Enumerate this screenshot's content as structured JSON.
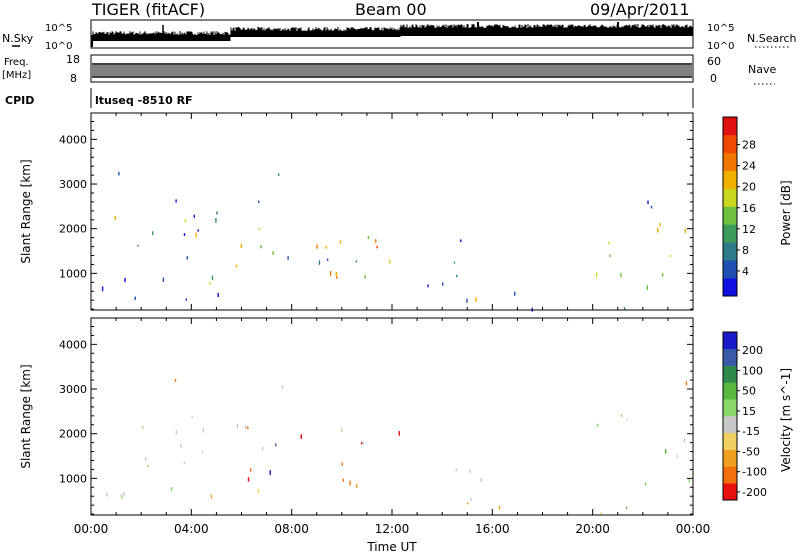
{
  "header": {
    "radar": "TIGER (fitACF)",
    "beam": "Beam 00",
    "date": "09/Apr/2011"
  },
  "top_panels": {
    "nsky_label": "N.Sky",
    "nsearch_label": "N.Search",
    "noise_ticks_left": [
      "10^5",
      "10^0"
    ],
    "noise_ticks_right": [
      "10^5",
      "10^0"
    ],
    "freq_label": "Freq.",
    "freq_unit": "[MHz]",
    "freq_ticks": [
      "18",
      "8"
    ],
    "nave_label": "Nave",
    "nave_ticks": [
      "60",
      "0"
    ],
    "cpid_label": "CPID",
    "cpid_value": "ltuseq -8510 RF"
  },
  "chart_data": [
    {
      "type": "heatmap",
      "name": "power",
      "ylabel": "Slant Range [km]",
      "ylim": [
        180,
        4590
      ],
      "yticks": [
        1000,
        2000,
        3000,
        4000
      ],
      "xlabel": "Time UT",
      "xticks": [
        "00:00",
        "04:00",
        "08:00",
        "12:00",
        "16:00",
        "20:00",
        "00:00"
      ],
      "colorbar": {
        "label": "Power [dB]",
        "ticks": [
          "4",
          "8",
          "12",
          "16",
          "20",
          "24",
          "28"
        ],
        "colors": [
          "#1010e0",
          "#1f4fb0",
          "#2f7a8a",
          "#3c9a5a",
          "#70c040",
          "#c8d820",
          "#f0b000",
          "#f07800",
          "#f04800",
          "#e01010"
        ]
      }
    },
    {
      "type": "heatmap",
      "name": "velocity",
      "ylabel": "Slant Range [km]",
      "ylim": [
        180,
        4590
      ],
      "yticks": [
        1000,
        2000,
        3000,
        4000
      ],
      "xlabel": "Time UT",
      "xticks": [
        "00:00",
        "04:00",
        "08:00",
        "12:00",
        "16:00",
        "20:00",
        "00:00"
      ],
      "colorbar": {
        "label": "Velocity [m s^-1]",
        "ticks": [
          "200",
          "100",
          "50",
          "15",
          "-15",
          "-50",
          "-100",
          "-200"
        ],
        "colors": [
          "#1a1ac8",
          "#3a5aa8",
          "#2e8a4a",
          "#5ab840",
          "#8ad86a",
          "#c8c8c8",
          "#f0d060",
          "#f0a020",
          "#f07010",
          "#e81010"
        ]
      }
    }
  ]
}
